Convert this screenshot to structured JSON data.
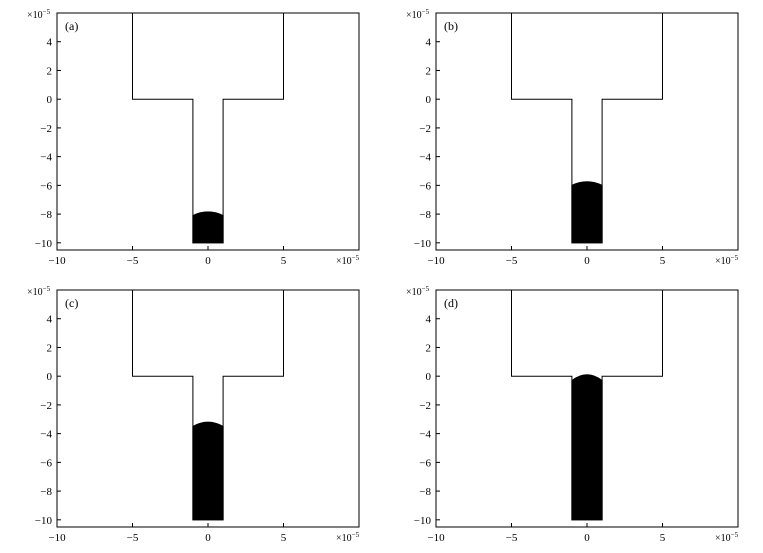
{
  "chart_data": [
    {
      "type": "area",
      "panel_label": "(a)",
      "xlim": [
        -10,
        10
      ],
      "ylim": [
        -10.5,
        6
      ],
      "x_ticks": [
        -10,
        -5,
        0,
        5,
        10
      ],
      "y_ticks": [
        4,
        2,
        0,
        -2,
        -4,
        -6,
        -8,
        -10
      ],
      "x_tick_labels": [
        "−10",
        "−5",
        "0",
        "5"
      ],
      "y_tick_labels": [
        "4",
        "2",
        "0",
        "−2",
        "−4",
        "−6",
        "−8",
        "−10"
      ],
      "axis_exponent_base": "×10",
      "axis_exponent_power": "−5",
      "geometry_outline": [
        [
          -5,
          6
        ],
        [
          5,
          6
        ],
        [
          5,
          0
        ],
        [
          1,
          0
        ],
        [
          1,
          -10
        ],
        [
          -1,
          -10
        ],
        [
          -1,
          0
        ],
        [
          -5,
          0
        ]
      ],
      "fluid": {
        "x_range": [
          -1,
          1
        ],
        "bottom": -10,
        "level": -8.1,
        "meniscus_height": 0.25
      }
    },
    {
      "type": "area",
      "panel_label": "(b)",
      "xlim": [
        -10,
        10
      ],
      "ylim": [
        -10.5,
        6
      ],
      "x_ticks": [
        -10,
        -5,
        0,
        5,
        10
      ],
      "y_ticks": [
        4,
        2,
        0,
        -2,
        -4,
        -6,
        -8,
        -10
      ],
      "x_tick_labels": [
        "−10",
        "−5",
        "0",
        "5"
      ],
      "y_tick_labels": [
        "4",
        "2",
        "0",
        "−2",
        "−4",
        "−6",
        "−8",
        "−10"
      ],
      "axis_exponent_base": "×10",
      "axis_exponent_power": "−5",
      "geometry_outline": [
        [
          -5,
          6
        ],
        [
          5,
          6
        ],
        [
          5,
          0
        ],
        [
          1,
          0
        ],
        [
          1,
          -10
        ],
        [
          -1,
          -10
        ],
        [
          -1,
          0
        ],
        [
          -5,
          0
        ]
      ],
      "fluid": {
        "x_range": [
          -1,
          1
        ],
        "bottom": -10,
        "level": -6.0,
        "meniscus_height": 0.25
      }
    },
    {
      "type": "area",
      "panel_label": "(c)",
      "xlim": [
        -10,
        10
      ],
      "ylim": [
        -10.5,
        6
      ],
      "x_ticks": [
        -10,
        -5,
        0,
        5,
        10
      ],
      "y_ticks": [
        4,
        2,
        0,
        -2,
        -4,
        -6,
        -8,
        -10
      ],
      "x_tick_labels": [
        "−10",
        "−5",
        "0",
        "5"
      ],
      "y_tick_labels": [
        "4",
        "2",
        "0",
        "−2",
        "−4",
        "−6",
        "−8",
        "−10"
      ],
      "axis_exponent_base": "×10",
      "axis_exponent_power": "−5",
      "geometry_outline": [
        [
          -5,
          6
        ],
        [
          5,
          6
        ],
        [
          5,
          0
        ],
        [
          1,
          0
        ],
        [
          1,
          -10
        ],
        [
          -1,
          -10
        ],
        [
          -1,
          0
        ],
        [
          -5,
          0
        ]
      ],
      "fluid": {
        "x_range": [
          -1,
          1
        ],
        "bottom": -10,
        "level": -3.5,
        "meniscus_height": 0.3
      }
    },
    {
      "type": "area",
      "panel_label": "(d)",
      "xlim": [
        -10,
        10
      ],
      "ylim": [
        -10.5,
        6
      ],
      "x_ticks": [
        -10,
        -5,
        0,
        5,
        10
      ],
      "y_ticks": [
        4,
        2,
        0,
        -2,
        -4,
        -6,
        -8,
        -10
      ],
      "x_tick_labels": [
        "−10",
        "−5",
        "0",
        "5"
      ],
      "y_tick_labels": [
        "4",
        "2",
        "0",
        "−2",
        "−4",
        "−6",
        "−8",
        "−10"
      ],
      "axis_exponent_base": "×10",
      "axis_exponent_power": "−5",
      "geometry_outline": [
        [
          -5,
          6
        ],
        [
          5,
          6
        ],
        [
          5,
          0
        ],
        [
          1,
          0
        ],
        [
          1,
          -10
        ],
        [
          -1,
          -10
        ],
        [
          -1,
          0
        ],
        [
          -5,
          0
        ]
      ],
      "fluid": {
        "x_range": [
          -1,
          1
        ],
        "bottom": -10,
        "level": -0.3,
        "meniscus_height": 0.4
      }
    }
  ]
}
